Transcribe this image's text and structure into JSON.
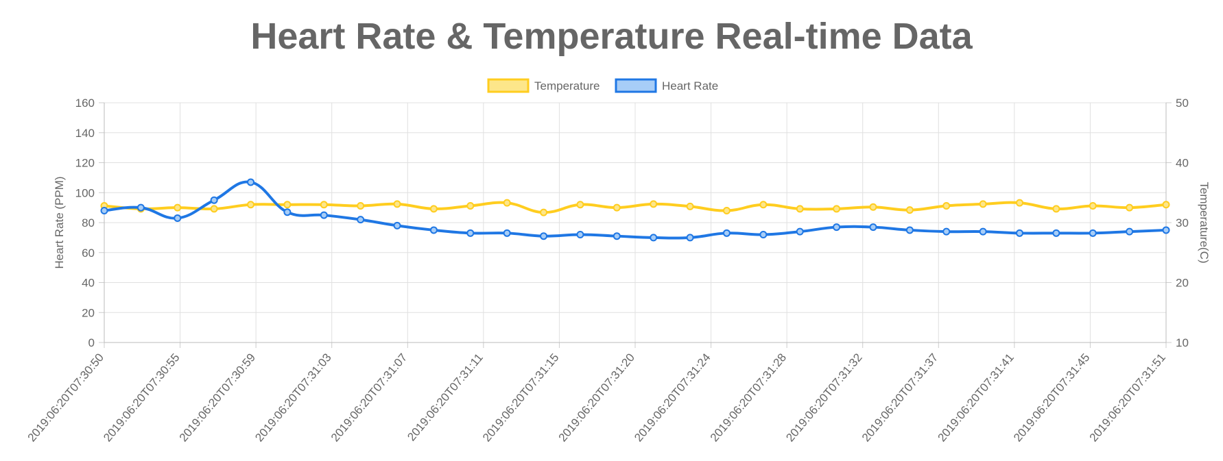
{
  "chart_data": {
    "type": "line",
    "title": "Heart Rate & Temperature Real-time Data",
    "legend_position": "top",
    "x_tick_labels": [
      "2019:06:20T07:30:50",
      "2019:06:20T07:30:55",
      "2019:06:20T07:30:59",
      "2019:06:20T07:31:03",
      "2019:06:20T07:31:07",
      "2019:06:20T07:31:11",
      "2019:06:20T07:31:15",
      "2019:06:20T07:31:20",
      "2019:06:20T07:31:24",
      "2019:06:20T07:31:28",
      "2019:06:20T07:31:32",
      "2019:06:20T07:31:37",
      "2019:06:20T07:31:41",
      "2019:06:20T07:31:45",
      "2019:06:20T07:31:51"
    ],
    "left_axis": {
      "label": "Heart Rate (PPM)",
      "min": 0,
      "max": 160,
      "ticks": [
        "0",
        "20",
        "40",
        "60",
        "80",
        "100",
        "120",
        "140",
        "160"
      ]
    },
    "right_axis": {
      "label": "Temperature(C)",
      "min": 10,
      "max": 50,
      "ticks": [
        "10",
        "20",
        "30",
        "40",
        "50"
      ]
    },
    "grid": true,
    "series": [
      {
        "name": "Temperature",
        "axis": "right",
        "color": "#ffcd1f",
        "fill": "#fde68a",
        "values": [
          32.8,
          32.3,
          32.5,
          32.3,
          33.0,
          33.0,
          33.0,
          32.8,
          33.1,
          32.3,
          32.8,
          33.3,
          31.7,
          33.0,
          32.5,
          33.1,
          32.7,
          32.0,
          33.0,
          32.3,
          32.3,
          32.6,
          32.1,
          32.8,
          33.1,
          33.3,
          32.3,
          32.8,
          32.5,
          33.0
        ]
      },
      {
        "name": "Heart Rate",
        "axis": "left",
        "color": "#1f77e4",
        "fill": "#a7cdf7",
        "values": [
          88,
          90,
          83,
          95,
          107,
          87,
          85,
          82,
          78,
          75,
          73,
          73,
          71,
          72,
          71,
          70,
          70,
          73,
          72,
          74,
          77,
          77,
          75,
          74,
          74,
          73,
          73,
          73,
          74,
          75
        ]
      }
    ]
  }
}
